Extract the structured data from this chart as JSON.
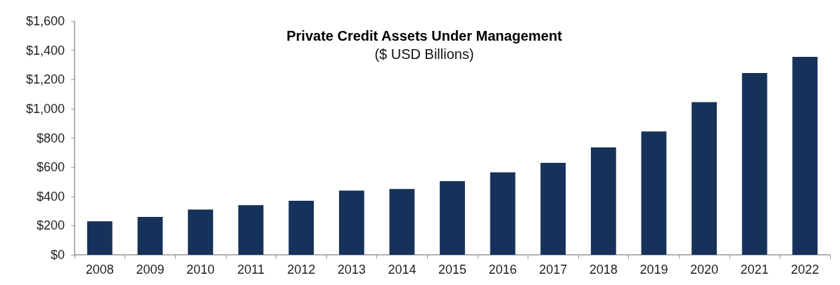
{
  "chart_data": {
    "type": "bar",
    "title": "Private Credit Assets Under Management",
    "subtitle": "($ USD Billions)",
    "categories": [
      "2008",
      "2009",
      "2010",
      "2011",
      "2012",
      "2013",
      "2014",
      "2015",
      "2016",
      "2017",
      "2018",
      "2019",
      "2020",
      "2021",
      "2022"
    ],
    "values": [
      230,
      260,
      310,
      340,
      370,
      440,
      450,
      505,
      565,
      630,
      735,
      845,
      1045,
      1245,
      1355
    ],
    "color": "#16325a",
    "ylim": [
      0,
      1600
    ],
    "yticks": [
      {
        "value": 0,
        "label": "$0"
      },
      {
        "value": 200,
        "label": "$200"
      },
      {
        "value": 400,
        "label": "$400"
      },
      {
        "value": 600,
        "label": "$600"
      },
      {
        "value": 800,
        "label": "$800"
      },
      {
        "value": 1000,
        "label": "$1,000"
      },
      {
        "value": 1200,
        "label": "$1,200"
      },
      {
        "value": 1400,
        "label": "$1,400"
      },
      {
        "value": 1600,
        "label": "$1,600"
      }
    ],
    "grid": false
  }
}
